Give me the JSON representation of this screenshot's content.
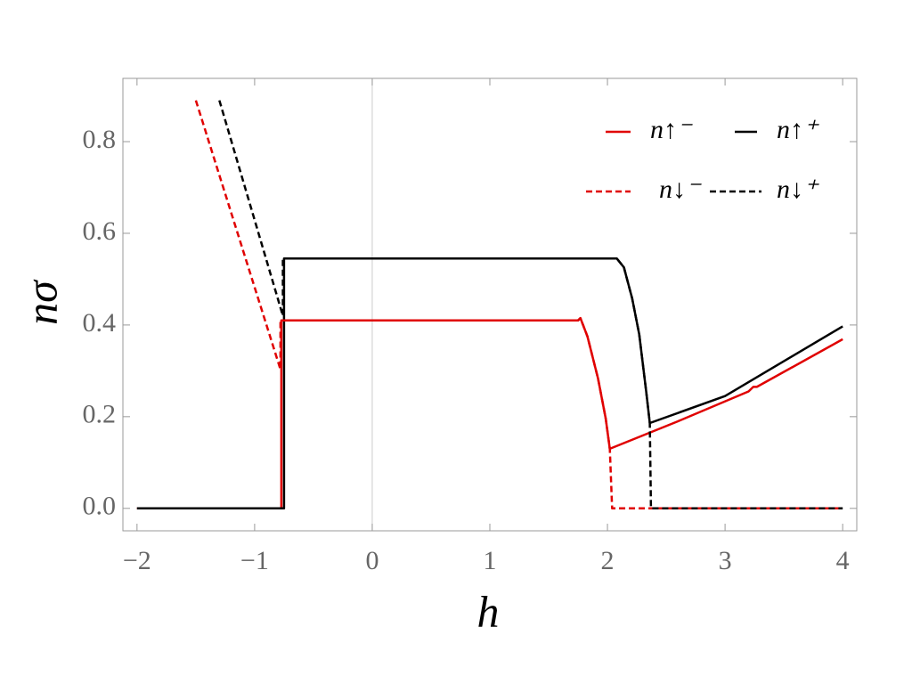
{
  "chart_data": {
    "type": "line",
    "xlabel": "h",
    "ylabel": "nσ",
    "xlim": [
      -2.12,
      4.12
    ],
    "ylim": [
      -0.049,
      0.938
    ],
    "xticks": [
      {
        "value": -2,
        "label": "−2"
      },
      {
        "value": -1,
        "label": "−1"
      },
      0,
      1,
      2,
      3,
      4
    ],
    "yticks": [
      {
        "value": 0,
        "label": "0.0"
      },
      0.2,
      0.4,
      0.6,
      0.8
    ],
    "origin_line": true,
    "series": [
      {
        "name": "n↑⁻",
        "color": "#e00000",
        "dash": false,
        "x": [
          -2,
          -0.773,
          -0.773,
          1.75,
          1.77,
          1.83,
          1.92,
          1.985,
          2.02,
          2.6,
          3.2,
          3.24,
          3.27,
          4
        ],
        "values": [
          0,
          0,
          0.41,
          0.41,
          0.415,
          0.375,
          0.283,
          0.196,
          0.13,
          0.19,
          0.255,
          0.265,
          0.265,
          0.369
        ]
      },
      {
        "name": "n↑⁺",
        "color": "#000000",
        "dash": false,
        "x": [
          -2,
          -0.75,
          -0.75,
          2.08,
          2.14,
          2.21,
          2.27,
          2.33,
          2.36,
          3.0,
          4
        ],
        "values": [
          0,
          0,
          0.545,
          0.545,
          0.526,
          0.458,
          0.38,
          0.254,
          0.186,
          0.245,
          0.397
        ]
      },
      {
        "name": "n↓⁻",
        "color": "#e00000",
        "dash": true,
        "x": [
          -1.5,
          -0.78,
          -0.78,
          1.75,
          1.77,
          1.83,
          1.92,
          1.985,
          2.02,
          2.04,
          4
        ],
        "values": [
          0.89,
          0.303,
          0.41,
          0.41,
          0.415,
          0.375,
          0.283,
          0.196,
          0.13,
          0,
          0
        ]
      },
      {
        "name": "n↓⁺",
        "color": "#000000",
        "dash": true,
        "x": [
          -1.3,
          -0.76,
          -0.76,
          2.08,
          2.14,
          2.21,
          2.27,
          2.33,
          2.36,
          2.37,
          4
        ],
        "values": [
          0.89,
          0.42,
          0.545,
          0.545,
          0.526,
          0.458,
          0.38,
          0.254,
          0.186,
          0,
          0
        ]
      }
    ]
  }
}
